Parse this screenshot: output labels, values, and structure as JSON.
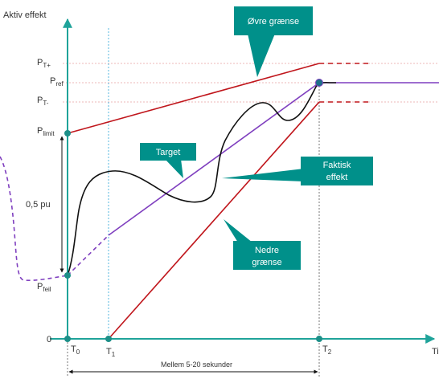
{
  "labels": {
    "y_axis": "Aktiv effekt",
    "x_axis": "Tid",
    "p_t_plus": {
      "main": "P",
      "sub": "T+"
    },
    "p_ref": {
      "main": "P",
      "sub": "ref"
    },
    "p_t_minus": {
      "main": "P",
      "sub": "T-"
    },
    "p_limit": {
      "main": "P",
      "sub": "limit"
    },
    "p_feil": {
      "main": "P",
      "sub": "feil"
    },
    "zero": "0",
    "t0": {
      "main": "T",
      "sub": "0"
    },
    "t1": {
      "main": "T",
      "sub": "1"
    },
    "t2": {
      "main": "T",
      "sub": "2"
    },
    "pu": "0,5 pu",
    "duration": "Mellem 5-20 sekunder"
  },
  "callouts": {
    "upper": "Øvre grænse",
    "target": "Target",
    "actual_line1": "Faktisk",
    "actual_line2": "effekt",
    "lower_line1": "Nedre",
    "lower_line2": "grænse"
  },
  "colors": {
    "axis": "#1fa39a",
    "upper_lower": "#c0161c",
    "target": "#7f3fbf",
    "actual": "#111111",
    "callout": "#00908a"
  }
}
